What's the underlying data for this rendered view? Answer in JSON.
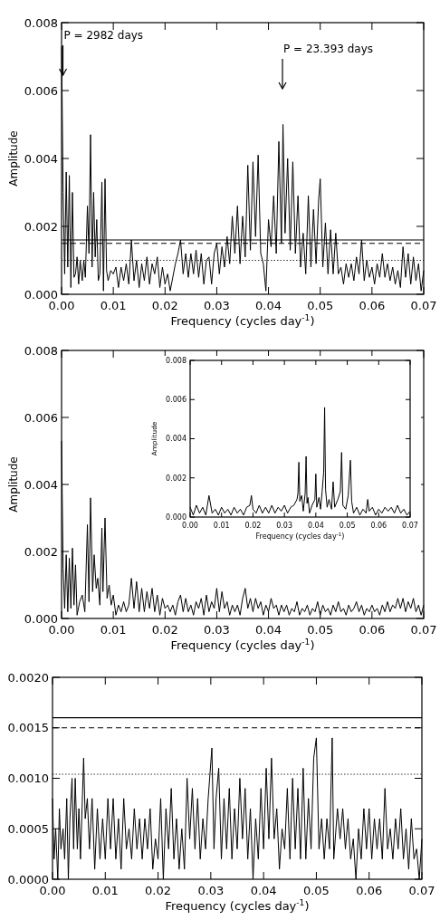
{
  "chart_data": [
    {
      "type": "line",
      "xlabel": "Frequency (cycles day$^{-1}$)",
      "ylabel": "Amplitude",
      "xlim": [
        0,
        0.07
      ],
      "ylim": [
        0,
        0.008
      ],
      "xticks": [
        {
          "value": 0,
          "label": "0.00"
        },
        {
          "value": 0.01,
          "label": "0.01"
        },
        {
          "value": 0.02,
          "label": "0.02"
        },
        {
          "value": 0.03,
          "label": "0.03"
        },
        {
          "value": 0.04,
          "label": "0.04"
        },
        {
          "value": 0.05,
          "label": "0.05"
        },
        {
          "value": 0.06,
          "label": "0.06"
        },
        {
          "value": 0.07,
          "label": "0.07"
        }
      ],
      "yticks": [
        {
          "value": 0,
          "label": "0.000"
        },
        {
          "value": 0.002,
          "label": "0.002"
        },
        {
          "value": 0.004,
          "label": "0.004"
        },
        {
          "value": 0.006,
          "label": "0.006"
        },
        {
          "value": 0.008,
          "label": "0.008"
        }
      ],
      "ref_lines": [
        {
          "axis": "y",
          "value": 0.0016,
          "line_style": "solid"
        },
        {
          "axis": "y",
          "value": 0.0015,
          "line_style": "dashed"
        },
        {
          "axis": "y",
          "value": 0.001,
          "line_style": "dotted"
        }
      ],
      "annotations": [
        "P = 2982 days",
        "P = 23.393 days"
      ],
      "series": [
        {
          "color": "#000000",
          "x": [
            0,
            0.0003,
            0.0006,
            0.0009,
            0.0012,
            0.0015,
            0.0018,
            0.0021,
            0.0024,
            0.0027,
            0.003,
            0.0033,
            0.0036,
            0.004,
            0.0043,
            0.0046,
            0.005,
            0.0053,
            0.0056,
            0.0059,
            0.0062,
            0.0065,
            0.0068,
            0.0071,
            0.0074,
            0.0078,
            0.0081,
            0.0084,
            0.0087,
            0.009,
            0.0095,
            0.01,
            0.0105,
            0.011,
            0.0115,
            0.012,
            0.0125,
            0.013,
            0.0135,
            0.014,
            0.0145,
            0.015,
            0.0155,
            0.016,
            0.0165,
            0.017,
            0.0175,
            0.018,
            0.0185,
            0.019,
            0.0195,
            0.02,
            0.0205,
            0.021,
            0.0215,
            0.022,
            0.0225,
            0.023,
            0.0235,
            0.024,
            0.0245,
            0.025,
            0.0255,
            0.026,
            0.0265,
            0.027,
            0.0275,
            0.028,
            0.0285,
            0.029,
            0.0295,
            0.03,
            0.0305,
            0.031,
            0.0315,
            0.032,
            0.0325,
            0.033,
            0.0335,
            0.034,
            0.0345,
            0.035,
            0.0355,
            0.036,
            0.0365,
            0.037,
            0.0375,
            0.038,
            0.0385,
            0.039,
            0.0395,
            0.04,
            0.0405,
            0.041,
            0.0415,
            0.042,
            0.0425,
            0.0428,
            0.0432,
            0.0437,
            0.0442,
            0.0447,
            0.0452,
            0.0457,
            0.0462,
            0.0467,
            0.0472,
            0.0477,
            0.0482,
            0.0487,
            0.0492,
            0.0497,
            0.05,
            0.0505,
            0.051,
            0.0515,
            0.052,
            0.0525,
            0.053,
            0.0535,
            0.054,
            0.0545,
            0.055,
            0.0555,
            0.056,
            0.0565,
            0.057,
            0.0575,
            0.058,
            0.0585,
            0.059,
            0.0595,
            0.06,
            0.0605,
            0.061,
            0.0615,
            0.062,
            0.0625,
            0.063,
            0.0635,
            0.064,
            0.0645,
            0.065,
            0.0655,
            0.066,
            0.0665,
            0.067,
            0.0675,
            0.068,
            0.0685,
            0.069,
            0.0695,
            0.07
          ],
          "values": [
            0.0073,
            0.003,
            0.0006,
            0.0036,
            0.0008,
            0.0035,
            0.0002,
            0.003,
            0.0005,
            0.0006,
            0.0011,
            0.0003,
            0.001,
            0.0004,
            0.001,
            0.0005,
            0.0026,
            0.0012,
            0.0047,
            0.0008,
            0.003,
            0.0011,
            0.0022,
            0.0004,
            0.0006,
            0.0033,
            0.0001,
            0.0034,
            0.0007,
            0.0004,
            0.0007,
            0.0006,
            0.0008,
            0.0002,
            0.0008,
            0.0004,
            0.0009,
            0.0003,
            0.0016,
            0.0004,
            0.001,
            0.0002,
            0.0009,
            0.0004,
            0.0011,
            0.0003,
            0.0009,
            0.0006,
            0.0011,
            0.0002,
            0.0008,
            0.0003,
            0.0006,
            0.0001,
            0.0005,
            0.0009,
            0.0012,
            0.0016,
            0.0006,
            0.0012,
            0.0005,
            0.0012,
            0.0006,
            0.0013,
            0.0005,
            0.0012,
            0.0003,
            0.001,
            0.0011,
            0.0003,
            0.0012,
            0.0015,
            0.0006,
            0.0014,
            0.0008,
            0.0017,
            0.0009,
            0.0023,
            0.0012,
            0.0026,
            0.0009,
            0.0023,
            0.0011,
            0.0038,
            0.0013,
            0.0039,
            0.0017,
            0.0041,
            0.0012,
            0.0009,
            0.0001,
            0.0022,
            0.0014,
            0.0029,
            0.0012,
            0.0045,
            0.0015,
            0.005,
            0.0018,
            0.004,
            0.0013,
            0.0039,
            0.0012,
            0.0029,
            0.0008,
            0.0018,
            0.0006,
            0.0029,
            0.0008,
            0.0025,
            0.0009,
            0.0028,
            0.0034,
            0.0008,
            0.0021,
            0.0006,
            0.0019,
            0.0006,
            0.0018,
            0.0006,
            0.0008,
            0.0003,
            0.0009,
            0.0005,
            0.0009,
            0.0004,
            0.0011,
            0.0006,
            0.0016,
            0.0004,
            0.001,
            0.0005,
            0.0008,
            0.0003,
            0.0009,
            0.0005,
            0.0012,
            0.0005,
            0.0009,
            0.0004,
            0.0008,
            0.0003,
            0.0007,
            0.0002,
            0.0014,
            0.0005,
            0.0012,
            0.0003,
            0.0011,
            0.0004,
            0.0009,
            0.0001,
            0.0007
          ]
        }
      ]
    },
    {
      "type": "line",
      "xlabel": "Frequency (cycles day$^{-1}$)",
      "ylabel": "Amplitude",
      "xlim": [
        0,
        0.07
      ],
      "ylim": [
        0,
        0.008
      ],
      "xticks": [
        {
          "value": 0,
          "label": "0.00"
        },
        {
          "value": 0.01,
          "label": "0.01"
        },
        {
          "value": 0.02,
          "label": "0.02"
        },
        {
          "value": 0.03,
          "label": "0.03"
        },
        {
          "value": 0.04,
          "label": "0.04"
        },
        {
          "value": 0.05,
          "label": "0.05"
        },
        {
          "value": 0.06,
          "label": "0.06"
        },
        {
          "value": 0.07,
          "label": "0.07"
        }
      ],
      "yticks": [
        {
          "value": 0,
          "label": "0.000"
        },
        {
          "value": 0.002,
          "label": "0.002"
        },
        {
          "value": 0.004,
          "label": "0.004"
        },
        {
          "value": 0.006,
          "label": "0.006"
        },
        {
          "value": 0.008,
          "label": "0.008"
        }
      ],
      "series": [
        {
          "color": "#000000",
          "x": [
            0,
            0.0003,
            0.0006,
            0.0009,
            0.0012,
            0.0015,
            0.0018,
            0.0021,
            0.0024,
            0.0027,
            0.003,
            0.0035,
            0.004,
            0.0045,
            0.005,
            0.0053,
            0.0056,
            0.006,
            0.0063,
            0.0067,
            0.007,
            0.0074,
            0.0078,
            0.008,
            0.0084,
            0.0088,
            0.0092,
            0.0096,
            0.01,
            0.0105,
            0.011,
            0.0115,
            0.012,
            0.0125,
            0.013,
            0.0135,
            0.014,
            0.0145,
            0.015,
            0.0155,
            0.016,
            0.0165,
            0.017,
            0.0175,
            0.018,
            0.0185,
            0.019,
            0.0195,
            0.02,
            0.0205,
            0.021,
            0.0215,
            0.022,
            0.0225,
            0.023,
            0.0235,
            0.024,
            0.0245,
            0.025,
            0.0255,
            0.026,
            0.0265,
            0.027,
            0.0275,
            0.028,
            0.0285,
            0.029,
            0.0295,
            0.03,
            0.0305,
            0.031,
            0.0315,
            0.032,
            0.0325,
            0.033,
            0.0335,
            0.034,
            0.0345,
            0.035,
            0.0355,
            0.036,
            0.0365,
            0.037,
            0.0375,
            0.038,
            0.0385,
            0.039,
            0.0395,
            0.04,
            0.0405,
            0.041,
            0.0415,
            0.042,
            0.0425,
            0.043,
            0.0435,
            0.044,
            0.0445,
            0.045,
            0.0455,
            0.046,
            0.0465,
            0.047,
            0.0475,
            0.048,
            0.0485,
            0.049,
            0.0495,
            0.05,
            0.0505,
            0.051,
            0.0515,
            0.052,
            0.0525,
            0.053,
            0.0535,
            0.054,
            0.0545,
            0.055,
            0.0555,
            0.056,
            0.0565,
            0.057,
            0.0575,
            0.058,
            0.0585,
            0.059,
            0.0595,
            0.06,
            0.0605,
            0.061,
            0.0615,
            0.062,
            0.0625,
            0.063,
            0.0635,
            0.064,
            0.0645,
            0.065,
            0.0655,
            0.066,
            0.0665,
            0.067,
            0.0675,
            0.068,
            0.0685,
            0.069,
            0.0695,
            0.07
          ],
          "values": [
            0.0053,
            0.0015,
            0.0003,
            0.0019,
            0.0002,
            0.0018,
            0.0003,
            0.0021,
            0.0004,
            0.0016,
            0.0001,
            0.0005,
            0.0007,
            0.0002,
            0.0028,
            0.0005,
            0.0036,
            0.0008,
            0.0019,
            0.0009,
            0.0012,
            0.0004,
            0.0027,
            0.0008,
            0.003,
            0.0006,
            0.001,
            0.0004,
            0.0007,
            0.0001,
            0.0004,
            0.0002,
            0.0005,
            0.0002,
            0.0004,
            0.0012,
            0.0003,
            0.0011,
            0.0002,
            0.0009,
            0.0002,
            0.0008,
            0.0003,
            0.0009,
            0.0002,
            0.0007,
            0.0001,
            0.0006,
            0.0003,
            0.0004,
            0.0002,
            0.0004,
            0.0001,
            0.0005,
            0.0007,
            0.0002,
            0.0006,
            0.0002,
            0.0004,
            0.0001,
            0.0005,
            0.0003,
            0.0006,
            0.0001,
            0.0007,
            0.0002,
            0.0005,
            0.0003,
            0.0009,
            0.0002,
            0.0008,
            0.0003,
            0.0005,
            0.0001,
            0.0004,
            0.0002,
            0.0004,
            0.0001,
            0.0006,
            0.0009,
            0.0003,
            0.0006,
            0.0002,
            0.0006,
            0.0003,
            0.0005,
            0.0001,
            0.0004,
            0.0002,
            0.0006,
            0.0003,
            0.0004,
            0.0001,
            0.0004,
            0.0002,
            0.0004,
            0.0001,
            0.0003,
            0.0002,
            0.0005,
            0.0001,
            0.0003,
            0.0002,
            0.0004,
            0.0001,
            0.0003,
            0.0002,
            0.0005,
            0.0001,
            0.0004,
            0.0002,
            0.0003,
            0.0001,
            0.0004,
            0.0002,
            0.0005,
            0.0002,
            0.0003,
            0.0001,
            0.0004,
            0.0002,
            0.0003,
            0.0005,
            0.0002,
            0.0004,
            0.0001,
            0.0003,
            0.0002,
            0.0004,
            0.0002,
            0.0003,
            0.0001,
            0.0004,
            0.0002,
            0.0005,
            0.0002,
            0.0004,
            0.0003,
            0.0006,
            0.0003,
            0.0006,
            0.0002,
            0.0005,
            0.0003,
            0.0006,
            0.0002,
            0.0004,
            0.0001,
            0.0004
          ]
        }
      ]
    },
    {
      "type": "line",
      "xlabel": "Frequency (cycles day$^{-1}$)",
      "ylabel": "Amplitude",
      "xlim": [
        0,
        0.07
      ],
      "ylim": [
        0,
        0.008
      ],
      "xticks": [
        {
          "value": 0,
          "label": "0.00"
        },
        {
          "value": 0.01,
          "label": "0.01"
        },
        {
          "value": 0.02,
          "label": "0.02"
        },
        {
          "value": 0.03,
          "label": "0.03"
        },
        {
          "value": 0.04,
          "label": "0.04"
        },
        {
          "value": 0.05,
          "label": "0.05"
        },
        {
          "value": 0.06,
          "label": "0.06"
        },
        {
          "value": 0.07,
          "label": "0.07"
        }
      ],
      "yticks": [
        {
          "value": 0,
          "label": "0.000"
        },
        {
          "value": 0.002,
          "label": "0.002"
        },
        {
          "value": 0.004,
          "label": "0.004"
        },
        {
          "value": 0.006,
          "label": "0.006"
        },
        {
          "value": 0.008,
          "label": "0.008"
        }
      ],
      "series": [
        {
          "color": "#000000",
          "x": [
            0,
            0.001,
            0.002,
            0.003,
            0.004,
            0.005,
            0.006,
            0.007,
            0.008,
            0.009,
            0.01,
            0.011,
            0.012,
            0.013,
            0.014,
            0.015,
            0.016,
            0.017,
            0.018,
            0.019,
            0.0195,
            0.02,
            0.021,
            0.022,
            0.023,
            0.024,
            0.025,
            0.026,
            0.027,
            0.028,
            0.029,
            0.03,
            0.031,
            0.032,
            0.033,
            0.034,
            0.0343,
            0.0346,
            0.0349,
            0.0355,
            0.036,
            0.0366,
            0.0369,
            0.0372,
            0.0375,
            0.038,
            0.0388,
            0.0397,
            0.04,
            0.0403,
            0.041,
            0.0415,
            0.042,
            0.0425,
            0.0428,
            0.0431,
            0.0436,
            0.0442,
            0.045,
            0.0455,
            0.046,
            0.047,
            0.0478,
            0.0482,
            0.0486,
            0.0495,
            0.0503,
            0.051,
            0.0514,
            0.052,
            0.053,
            0.054,
            0.055,
            0.056,
            0.0565,
            0.057,
            0.058,
            0.059,
            0.06,
            0.061,
            0.062,
            0.063,
            0.064,
            0.065,
            0.066,
            0.067,
            0.068,
            0.069,
            0.07
          ],
          "values": [
            0.0005,
            0.0001,
            0.0006,
            0.0002,
            0.0005,
            0.0001,
            0.0011,
            0.0002,
            0.0004,
            0.0001,
            0.0005,
            0.0002,
            0.0004,
            0.0001,
            0.0005,
            0.0002,
            0.0004,
            0.0001,
            0.0005,
            0.0006,
            0.0011,
            0.0004,
            0.0002,
            0.0006,
            0.0002,
            0.0005,
            0.0002,
            0.0006,
            0.0002,
            0.0005,
            0.0003,
            0.0006,
            0.0002,
            0.0005,
            0.0006,
            0.0009,
            0.0012,
            0.0028,
            0.0008,
            0.0011,
            0.0003,
            0.0012,
            0.0031,
            0.0007,
            0.001,
            0.0002,
            0.0006,
            0.0009,
            0.0022,
            0.0005,
            0.001,
            0.0004,
            0.0013,
            0.0023,
            0.0056,
            0.0014,
            0.0005,
            0.0009,
            0.0004,
            0.0018,
            0.0005,
            0.0009,
            0.0013,
            0.0033,
            0.0006,
            0.0004,
            0.0011,
            0.0029,
            0.0008,
            0.0002,
            0.0005,
            0.0001,
            0.0004,
            0.0002,
            0.0009,
            0.0003,
            0.0005,
            0.0001,
            0.0004,
            0.0002,
            0.0005,
            0.0003,
            0.0005,
            0.0002,
            0.0006,
            0.0002,
            0.0004,
            0.0001,
            0.0003
          ]
        }
      ]
    },
    {
      "type": "line",
      "xlabel": "Frequency (cycles day$^{-1}$)",
      "xlim": [
        0,
        0.07
      ],
      "ylim": [
        0,
        0.002
      ],
      "xticks": [
        {
          "value": 0,
          "label": "0.00"
        },
        {
          "value": 0.01,
          "label": "0.01"
        },
        {
          "value": 0.02,
          "label": "0.02"
        },
        {
          "value": 0.03,
          "label": "0.03"
        },
        {
          "value": 0.04,
          "label": "0.04"
        },
        {
          "value": 0.05,
          "label": "0.05"
        },
        {
          "value": 0.06,
          "label": "0.06"
        },
        {
          "value": 0.07,
          "label": "0.07"
        }
      ],
      "yticks": [
        {
          "value": 0,
          "label": "0.0000"
        },
        {
          "value": 0.0005,
          "label": "0.0005"
        },
        {
          "value": 0.001,
          "label": "0.0010"
        },
        {
          "value": 0.0015,
          "label": "0.0015"
        },
        {
          "value": 0.002,
          "label": "0.0020"
        }
      ],
      "ref_lines": [
        {
          "axis": "y",
          "value": 0.0016,
          "line_style": "solid"
        },
        {
          "axis": "y",
          "value": 0.0015,
          "line_style": "dashed"
        },
        {
          "axis": "y",
          "value": 0.00104,
          "line_style": "dotted"
        }
      ],
      "series": [
        {
          "color": "#000000",
          "x": [
            0,
            0.0003,
            0.0006,
            0.001,
            0.0013,
            0.0016,
            0.002,
            0.0023,
            0.0027,
            0.003,
            0.0033,
            0.0037,
            0.004,
            0.0043,
            0.0047,
            0.005,
            0.0053,
            0.0059,
            0.0062,
            0.0066,
            0.007,
            0.0075,
            0.008,
            0.0085,
            0.009,
            0.0095,
            0.01,
            0.0105,
            0.011,
            0.0115,
            0.012,
            0.0125,
            0.013,
            0.0135,
            0.014,
            0.0145,
            0.015,
            0.0155,
            0.016,
            0.0165,
            0.017,
            0.0175,
            0.018,
            0.0185,
            0.019,
            0.0195,
            0.02,
            0.0205,
            0.021,
            0.0215,
            0.022,
            0.0225,
            0.023,
            0.0235,
            0.024,
            0.0245,
            0.025,
            0.0255,
            0.026,
            0.0265,
            0.027,
            0.0275,
            0.028,
            0.0285,
            0.029,
            0.0295,
            0.0302,
            0.0306,
            0.031,
            0.0315,
            0.032,
            0.0325,
            0.033,
            0.0335,
            0.034,
            0.0345,
            0.035,
            0.0355,
            0.036,
            0.0365,
            0.037,
            0.0375,
            0.038,
            0.0385,
            0.039,
            0.0395,
            0.04,
            0.0405,
            0.041,
            0.0415,
            0.042,
            0.0425,
            0.043,
            0.0435,
            0.044,
            0.0445,
            0.045,
            0.0455,
            0.046,
            0.0465,
            0.047,
            0.0475,
            0.048,
            0.0485,
            0.049,
            0.0495,
            0.05,
            0.0505,
            0.051,
            0.0515,
            0.052,
            0.0525,
            0.053,
            0.0533,
            0.054,
            0.0545,
            0.055,
            0.0555,
            0.056,
            0.0565,
            0.057,
            0.0575,
            0.058,
            0.0585,
            0.059,
            0.0595,
            0.06,
            0.0605,
            0.061,
            0.0615,
            0.062,
            0.0625,
            0.063,
            0.0635,
            0.064,
            0.0645,
            0.065,
            0.0655,
            0.066,
            0.0665,
            0.067,
            0.0675,
            0.068,
            0.0685,
            0.069,
            0.0695,
            0.07
          ],
          "values": [
            0.0008,
            0.0002,
            0.0005,
            0,
            0.0007,
            0.0003,
            0.0005,
            0.0002,
            0.0008,
            0,
            0.0006,
            0.001,
            0.0003,
            0.001,
            0.0003,
            0.0007,
            0.0002,
            0.0012,
            0.0006,
            0.0008,
            0.0003,
            0.0008,
            0.0001,
            0.0007,
            0.0002,
            0.0006,
            0.0002,
            0.0008,
            0.0003,
            0.0008,
            0.0002,
            0.0006,
            0.0001,
            0.0008,
            0.0003,
            0.0005,
            0.0002,
            0.0007,
            0.0003,
            0.0006,
            0.0002,
            0.0006,
            0.0003,
            0.0007,
            0.0001,
            0.0004,
            0.0002,
            0.0008,
            0,
            0.0007,
            0.0003,
            0.0009,
            0.0002,
            0.0006,
            0.0001,
            0.0005,
            0.0001,
            0.001,
            0.0004,
            0.0009,
            0.0003,
            0.0008,
            0.0002,
            0.0006,
            0.0003,
            0.0008,
            0.0013,
            0.0003,
            0.0008,
            0.0011,
            0.0002,
            0.0008,
            0.0003,
            0.0009,
            0.0002,
            0.0007,
            0.0003,
            0.001,
            0.0004,
            0.0009,
            0.0002,
            0.0007,
            0,
            0.0006,
            0.0002,
            0.0009,
            0.0003,
            0.0011,
            0.0004,
            0.0012,
            0.0004,
            0.0007,
            0.0001,
            0.0005,
            0.0003,
            0.0009,
            0.0002,
            0.001,
            0.0003,
            0.0009,
            0.0002,
            0.0011,
            0.0002,
            0.0008,
            0.0003,
            0.0012,
            0.0014,
            0.0003,
            0.0006,
            0.0002,
            0.0006,
            0.0003,
            0.0014,
            0.0002,
            0.0007,
            0.0004,
            0.0007,
            0.0003,
            0.0006,
            0.0002,
            0.0004,
            0,
            0.0005,
            0.0002,
            0.0007,
            0.0003,
            0.0007,
            0.0002,
            0.0006,
            0.0003,
            0.0006,
            0.0002,
            0.0009,
            0.0003,
            0.0005,
            0.0002,
            0.0006,
            0.0003,
            0.0007,
            0.0002,
            0.0005,
            0.0001,
            0.0006,
            0.0002,
            0.0003,
            0,
            0.0004
          ]
        }
      ]
    }
  ]
}
